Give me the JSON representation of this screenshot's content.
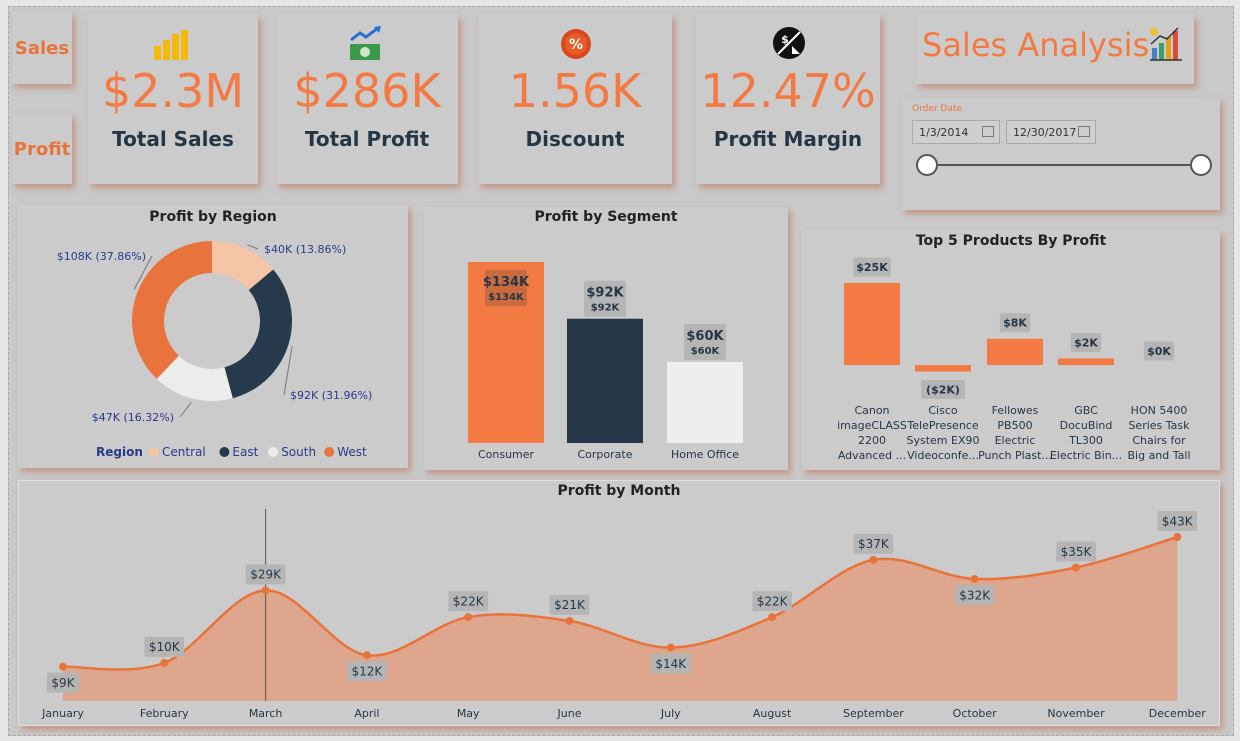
{
  "nav": {
    "sales_label": "Sales",
    "profit_label": "Profit"
  },
  "kpis": [
    {
      "value": "$2.3M",
      "label": "Total Sales",
      "icon": "coins-stack-icon"
    },
    {
      "value": "$286K",
      "label": "Total Profit",
      "icon": "money-trend-icon"
    },
    {
      "value": "1.56K",
      "label": "Discount",
      "icon": "discount-badge-icon"
    },
    {
      "value": "12.47%",
      "label": "Profit Margin",
      "icon": "dollar-down-icon"
    }
  ],
  "header": {
    "title": "Sales Analysis",
    "icon": "bar-chart-growth-icon"
  },
  "date_filter": {
    "label": "Order Date",
    "start": "1/3/2014",
    "end": "12/30/2017"
  },
  "colors": {
    "accent": "#f47a43",
    "dark": "#253747",
    "central": "#f6c4a7",
    "east": "#263a4c",
    "south": "#ececec",
    "west": "#e9733d"
  },
  "chart_data": [
    {
      "type": "pie",
      "title": "Profit by Region",
      "legend_title": "Region",
      "categories": [
        "Central",
        "East",
        "South",
        "West"
      ],
      "values": [
        39706,
        91523,
        46749,
        108418
      ],
      "data_labels": [
        "$40K (13.86%)",
        "$92K (31.96%)",
        "$47K (16.32%)",
        "$108K (37.86%)"
      ]
    },
    {
      "type": "bar",
      "title": "Profit by Segment",
      "categories": [
        "Consumer",
        "Corporate",
        "Home Office"
      ],
      "values": [
        134,
        92,
        60
      ],
      "data_labels": [
        "$134K",
        "$92K",
        "$60K"
      ],
      "unit": "K"
    },
    {
      "type": "bar",
      "title": "Top 5 Products By Profit",
      "categories": [
        "Canon imageCLASS 2200 Advanced ...",
        "Cisco TelePresence System EX90 Videoconfe...",
        "Fellowes PB500 Electric Punch Plast...",
        "GBC DocuBind TL300 Electric Bin...",
        "HON 5400 Series Task Chairs for Big and Tall"
      ],
      "category_lines": [
        [
          "Canon",
          "imageCLASS",
          "2200",
          "Advanced ..."
        ],
        [
          "Cisco",
          "TelePresence",
          "System EX90",
          "Videoconfe..."
        ],
        [
          "Fellowes",
          "PB500",
          "Electric",
          "Punch Plast..."
        ],
        [
          "GBC",
          "DocuBind",
          "TL300",
          "Electric Bin..."
        ],
        [
          "HON 5400",
          "Series Task",
          "Chairs for",
          "Big and Tall"
        ]
      ],
      "values": [
        25,
        -2,
        8,
        2,
        0
      ],
      "data_labels": [
        "$25K",
        "($2K)",
        "$8K",
        "$2K",
        "$0K"
      ],
      "unit": "K"
    },
    {
      "type": "area",
      "title": "Profit by Month",
      "categories": [
        "January",
        "February",
        "March",
        "April",
        "May",
        "June",
        "July",
        "August",
        "September",
        "October",
        "November",
        "December"
      ],
      "values": [
        9,
        10,
        29,
        12,
        22,
        21,
        14,
        22,
        37,
        32,
        35,
        43
      ],
      "data_labels": [
        "$9K",
        "$10K",
        "$29K",
        "$12K",
        "$22K",
        "$21K",
        "$14K",
        "$22K",
        "$37K",
        "$32K",
        "$35K",
        "$43K"
      ],
      "unit": "K"
    }
  ]
}
